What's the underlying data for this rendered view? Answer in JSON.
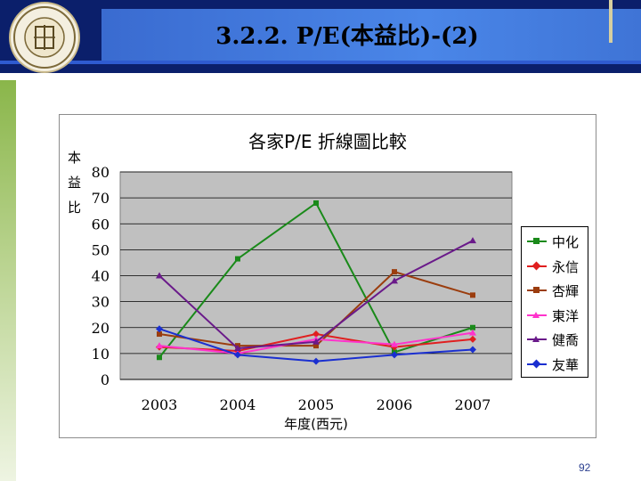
{
  "slide": {
    "title": "3.2.2. P/E(本益比)-(2)",
    "page_number": "92"
  },
  "chart_data": {
    "type": "line",
    "title": "各家P/E 折線圖比較",
    "ylabel": "本益比",
    "xlabel": "年度(西元)",
    "categories": [
      "2003",
      "2004",
      "2005",
      "2006",
      "2007"
    ],
    "ylim": [
      0,
      80
    ],
    "yticks": [
      0,
      10,
      20,
      30,
      40,
      50,
      60,
      70,
      80
    ],
    "grid": true,
    "legend": "right",
    "series": [
      {
        "name": "中化",
        "color": "#1a8a1a",
        "marker": "square",
        "values": [
          8.5,
          46.5,
          68,
          10.5,
          20
        ]
      },
      {
        "name": "永信",
        "color": "#e01f1f",
        "marker": "diamond",
        "values": [
          12.5,
          11,
          17.5,
          12.5,
          15.5
        ]
      },
      {
        "name": "杏輝",
        "color": "#9b3d0e",
        "marker": "square",
        "values": [
          17.5,
          13,
          13,
          41.5,
          32.5
        ]
      },
      {
        "name": "東洋",
        "color": "#ff33cc",
        "marker": "triangle",
        "values": [
          13,
          10,
          15.5,
          13.5,
          18
        ]
      },
      {
        "name": "健喬",
        "color": "#6a1a8a",
        "marker": "triangle",
        "values": [
          40,
          12,
          14.5,
          38,
          53.5
        ]
      },
      {
        "name": "友華",
        "color": "#1a2fd0",
        "marker": "diamond",
        "values": [
          19.5,
          9.5,
          7,
          9.5,
          11.5
        ]
      }
    ]
  }
}
